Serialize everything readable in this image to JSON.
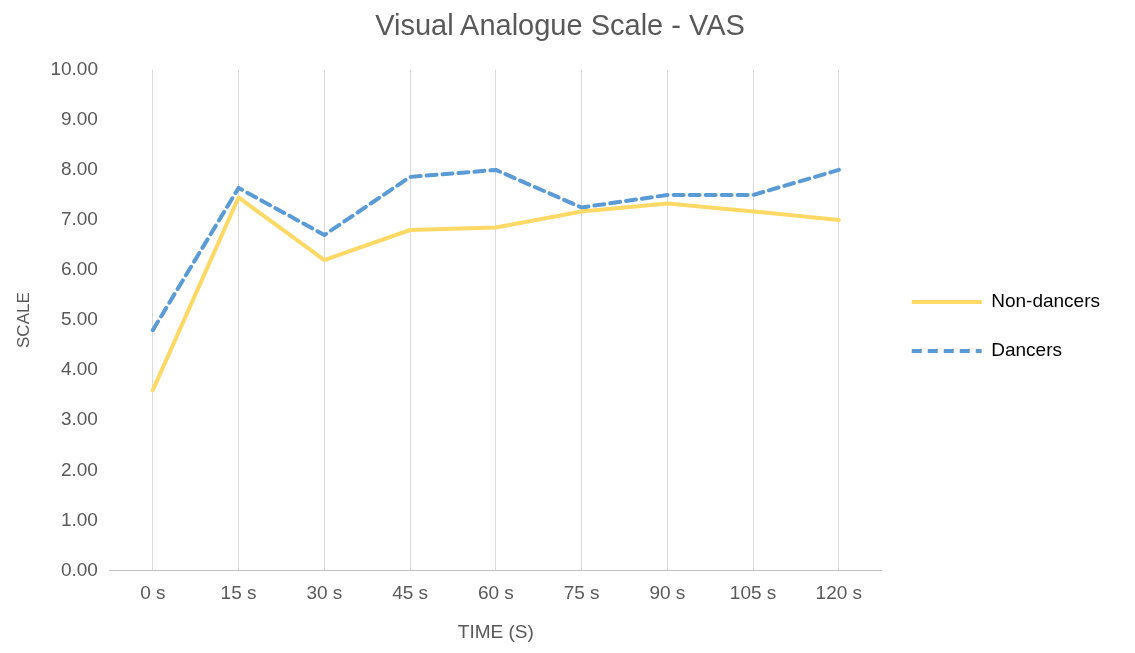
{
  "chart_data": {
    "type": "line",
    "title": "Visual Analogue Scale - VAS",
    "xlabel": "TIME (S)",
    "ylabel": "SCALE",
    "categories": [
      "0 s",
      "15 s",
      "30 s",
      "45 s",
      "60 s",
      "75 s",
      "90 s",
      "105 s",
      "120 s"
    ],
    "series": [
      {
        "name": "Non-dancers",
        "color": "#ffd966",
        "line_style": "solid",
        "values": [
          3.6,
          7.45,
          6.2,
          6.8,
          6.85,
          7.17,
          7.33,
          7.17,
          7.0
        ]
      },
      {
        "name": "Dancers",
        "color": "#5b9bd5",
        "line_style": "dashed",
        "values": [
          4.8,
          7.64,
          6.7,
          7.86,
          8.0,
          7.25,
          7.5,
          7.5,
          8.0
        ]
      }
    ],
    "ylim": [
      0,
      10
    ],
    "yticks": [
      {
        "value": 0,
        "label": "0.00"
      },
      {
        "value": 1,
        "label": "1.00"
      },
      {
        "value": 2,
        "label": "2.00"
      },
      {
        "value": 3,
        "label": "3.00"
      },
      {
        "value": 4,
        "label": "4.00"
      },
      {
        "value": 5,
        "label": "5.00"
      },
      {
        "value": 6,
        "label": "6.00"
      },
      {
        "value": 7,
        "label": "7.00"
      },
      {
        "value": 8,
        "label": "8.00"
      },
      {
        "value": 9,
        "label": "9.00"
      },
      {
        "value": 10,
        "label": "10.00"
      }
    ],
    "grid": "x",
    "legend": "right",
    "marker": "none"
  }
}
